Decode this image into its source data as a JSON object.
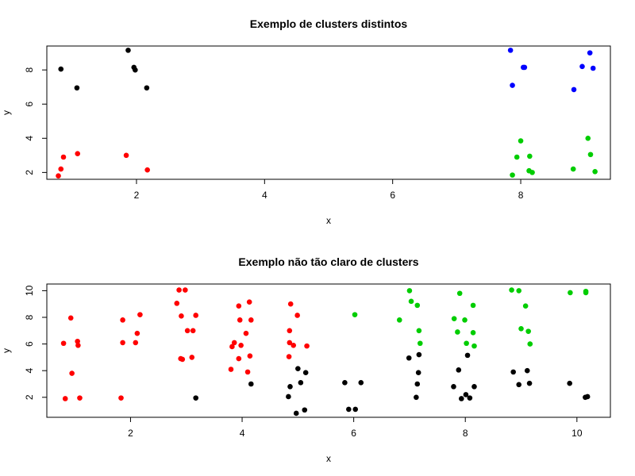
{
  "colors": {
    "black": "#000000",
    "red": "#ff0000",
    "blue": "#0000ff",
    "green": "#00cd00"
  },
  "chart_data": [
    {
      "type": "scatter",
      "title": "Exemplo de clusters distintos",
      "xlabel": "x",
      "ylabel": "y",
      "xlim": [
        0.6,
        9.4
      ],
      "ylim": [
        1.6,
        9.4
      ],
      "xticks": [
        2,
        4,
        6,
        8
      ],
      "yticks": [
        2,
        4,
        6,
        8
      ],
      "grid": false,
      "series": [
        {
          "color": "black",
          "x": [
            0.82,
            1.07,
            1.87,
            1.96,
            1.98,
            2.16
          ],
          "y": [
            8.05,
            6.95,
            9.15,
            8.15,
            8.0,
            6.95
          ]
        },
        {
          "color": "red",
          "x": [
            0.78,
            0.82,
            0.86,
            1.08,
            1.84,
            2.17
          ],
          "y": [
            1.8,
            2.2,
            2.9,
            3.1,
            3.0,
            2.15
          ]
        },
        {
          "color": "blue",
          "x": [
            7.84,
            7.87,
            8.04,
            8.06,
            8.83,
            8.96,
            9.08,
            9.13
          ],
          "y": [
            9.15,
            7.1,
            8.15,
            8.15,
            6.85,
            8.2,
            9.0,
            8.1
          ]
        },
        {
          "color": "green",
          "x": [
            7.87,
            7.94,
            8.0,
            8.13,
            8.14,
            8.18,
            8.82,
            9.05,
            9.09,
            9.16
          ],
          "y": [
            1.85,
            2.9,
            3.85,
            2.1,
            2.95,
            2.0,
            2.2,
            4.0,
            3.05,
            2.05
          ]
        }
      ]
    },
    {
      "type": "scatter",
      "title": "Exemplo não tão claro de clusters",
      "xlabel": "x",
      "ylabel": "y",
      "xlim": [
        0.5,
        10.6
      ],
      "ylim": [
        0.5,
        10.5
      ],
      "xticks": [
        2,
        4,
        6,
        8,
        10
      ],
      "yticks": [
        2,
        4,
        6,
        8,
        10
      ],
      "grid": false,
      "series": [
        {
          "color": "red",
          "x": [
            0.8,
            0.83,
            0.93,
            0.95,
            1.05,
            1.06,
            1.09,
            1.83,
            1.86,
            1.86,
            2.09,
            2.12,
            2.17,
            2.83,
            2.87,
            2.9,
            2.91,
            2.93,
            2.98,
            3.02,
            3.1,
            3.12,
            3.17,
            3.8,
            3.82,
            3.86,
            3.94,
            3.94,
            3.96,
            3.98,
            4.07,
            4.1,
            4.13,
            4.14,
            4.16,
            4.84,
            4.85,
            4.85,
            4.87,
            4.92,
            4.99,
            5.16
          ],
          "y": [
            6.05,
            1.9,
            7.95,
            3.8,
            6.2,
            5.9,
            1.95,
            1.95,
            7.8,
            6.1,
            6.1,
            6.8,
            8.2,
            9.05,
            10.05,
            4.9,
            8.1,
            4.85,
            10.05,
            7.0,
            5.0,
            7.0,
            8.15,
            4.1,
            5.8,
            6.1,
            4.9,
            8.85,
            7.8,
            5.9,
            6.8,
            3.9,
            9.15,
            5.1,
            7.8,
            5.05,
            6.1,
            7.0,
            9.0,
            5.9,
            8.15,
            5.85
          ]
        },
        {
          "color": "black",
          "x": [
            3.17,
            4.16,
            4.83,
            4.86,
            4.97,
            5.0,
            5.05,
            5.12,
            5.14,
            5.84,
            5.91,
            6.03,
            6.13,
            6.99,
            7.12,
            7.14,
            7.16,
            7.17,
            7.79,
            7.88,
            7.93,
            8.01,
            8.04,
            8.08,
            8.16,
            8.86,
            8.96,
            9.11,
            9.15,
            9.87,
            10.15,
            10.19
          ],
          "y": [
            1.95,
            3.0,
            2.05,
            2.8,
            0.8,
            4.15,
            3.1,
            1.05,
            3.85,
            3.1,
            1.1,
            1.1,
            3.1,
            4.95,
            2.0,
            3.0,
            3.85,
            5.2,
            2.8,
            4.05,
            1.9,
            2.2,
            5.15,
            1.95,
            2.8,
            3.9,
            2.95,
            4.0,
            3.05,
            3.05,
            2.0,
            2.05
          ]
        },
        {
          "color": "green",
          "x": [
            6.02,
            6.82,
            7.0,
            7.03,
            7.14,
            7.17,
            7.19,
            7.8,
            7.86,
            7.9,
            7.99,
            8.02,
            8.14,
            8.14,
            8.16,
            8.83,
            8.96,
            9.0,
            9.08,
            9.13,
            9.16,
            9.88,
            10.16,
            10.16
          ],
          "y": [
            8.2,
            7.8,
            10.0,
            9.2,
            8.9,
            7.0,
            6.05,
            7.9,
            6.9,
            9.8,
            7.8,
            6.05,
            8.9,
            6.85,
            5.85,
            10.05,
            10.0,
            7.15,
            8.85,
            6.95,
            6.0,
            9.85,
            9.95,
            9.85
          ]
        }
      ]
    }
  ]
}
